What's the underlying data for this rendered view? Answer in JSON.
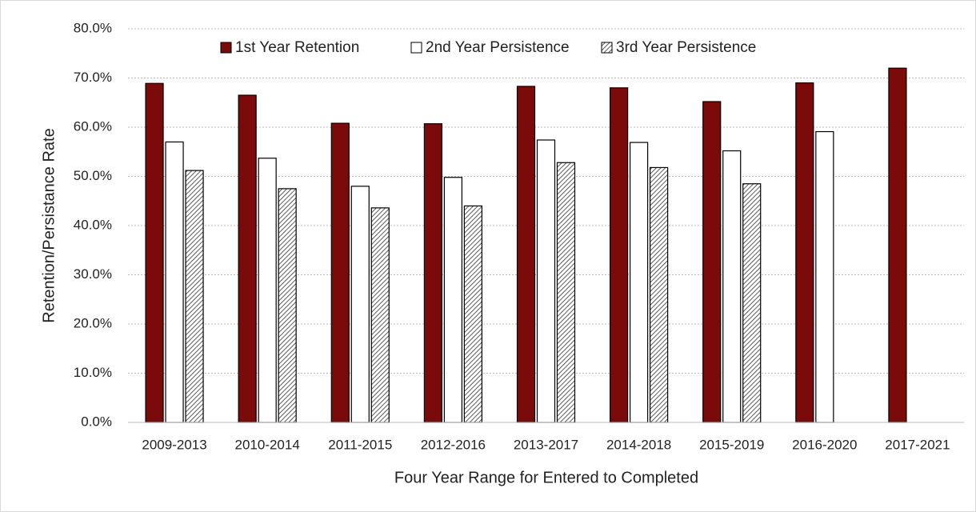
{
  "chart_data": {
    "type": "bar",
    "x_label": "Four Year Range for Entered to Completed",
    "y_label": "Retention/Persistance Rate",
    "categories": [
      "2009-2013",
      "2010-2014",
      "2011-2015",
      "2012-2016",
      "2013-2017",
      "2014-2018",
      "2015-2019",
      "2016-2020",
      "2017-2021"
    ],
    "series": [
      {
        "name": "1st Year Retention",
        "color": "#7b0a0a",
        "values": [
          68.9,
          66.5,
          60.8,
          60.7,
          68.3,
          68.0,
          65.2,
          69.0,
          72.0
        ]
      },
      {
        "name": "2nd Year Persistence",
        "color": "#ffffff",
        "values": [
          57.0,
          53.7,
          48.0,
          49.8,
          57.4,
          56.9,
          55.2,
          59.1,
          null
        ]
      },
      {
        "name": "3rd Year Persistence",
        "color": "#ffffff",
        "hatch": true,
        "values": [
          51.2,
          47.5,
          43.6,
          44.0,
          52.8,
          51.8,
          48.5,
          null,
          null
        ]
      }
    ],
    "ylim": [
      0,
      80
    ],
    "yticks": [
      {
        "value": 0,
        "label": "0.0%"
      },
      {
        "value": 10,
        "label": "10.0%"
      },
      {
        "value": 20,
        "label": "20.0%"
      },
      {
        "value": 30,
        "label": "30.0%"
      },
      {
        "value": 40,
        "label": "40.0%"
      },
      {
        "value": 50,
        "label": "50.0%"
      },
      {
        "value": 60,
        "label": "60.0%"
      },
      {
        "value": 70,
        "label": "70.0%"
      },
      {
        "value": 80,
        "label": "80.0%"
      }
    ],
    "grid": true,
    "legend": "top"
  }
}
